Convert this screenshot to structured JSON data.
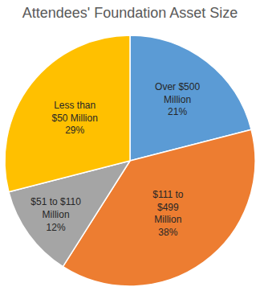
{
  "chart_data": {
    "type": "pie",
    "title": "Attendees' Foundation Asset Size",
    "categories": [
      "Over $500 Million",
      "$111 to $499 Million",
      "$51 to $110 Million",
      "Less than $50 Million"
    ],
    "values": [
      21,
      38,
      12,
      29
    ],
    "value_labels": [
      "21%",
      "38%",
      "12%",
      "29%"
    ],
    "colors": [
      "#5b9bd5",
      "#ed7d31",
      "#a5a5a5",
      "#ffc000"
    ],
    "data_labels": true
  }
}
